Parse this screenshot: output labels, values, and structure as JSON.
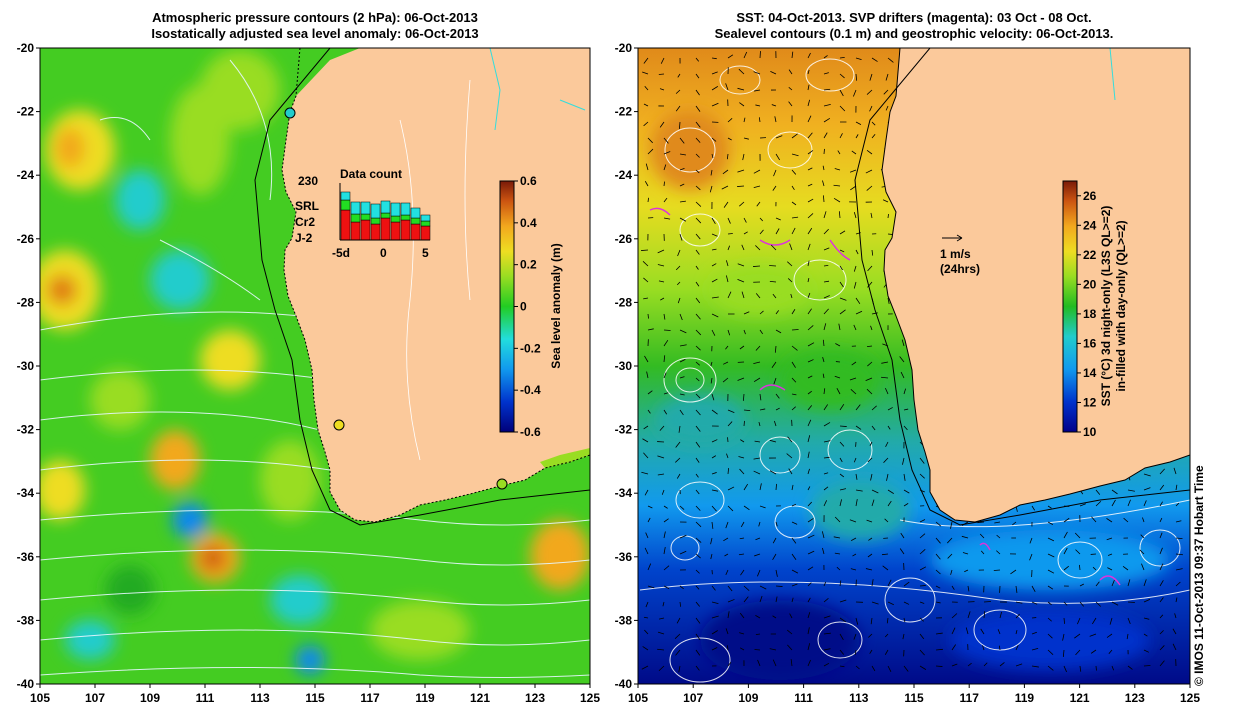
{
  "left_panel": {
    "title_line1": "Atmospheric pressure contours (2 hPa): 06-Oct-2013",
    "title_line2": "Isostatically adjusted sea level anomaly: 06-Oct-2013",
    "x_ticks": [
      "105",
      "107",
      "109",
      "111",
      "113",
      "115",
      "117",
      "119",
      "121",
      "123",
      "125"
    ],
    "y_ticks": [
      "-20",
      "-22",
      "-24",
      "-26",
      "-28",
      "-30",
      "-32",
      "-34",
      "-36",
      "-38",
      "-40"
    ],
    "colorbar": {
      "label": "Sea level anomaly (m)",
      "ticks": [
        "0.6",
        "0.4",
        "0.2",
        "0",
        "-0.2",
        "-0.4",
        "-0.6"
      ],
      "min": -0.6,
      "max": 0.6
    },
    "inset": {
      "title": "Data count",
      "max_label": "230",
      "series": [
        {
          "name": "SRL",
          "color": "#22e0e0"
        },
        {
          "name": "Cr2",
          "color": "#22dd22"
        },
        {
          "name": "J-2",
          "color": "#ee1111"
        }
      ],
      "x_ticks": [
        "-5d",
        "0",
        "5"
      ]
    },
    "colors": {
      "land": "#fbc99b",
      "sea_mid": "#33cc22"
    }
  },
  "right_panel": {
    "title_line1": "SST: 04-Oct-2013. SVP drifters (magenta): 03 Oct - 08 Oct.",
    "title_line2": "Sealevel contours (0.1 m) and geostrophic velocity: 06-Oct-2013.",
    "x_ticks": [
      "105",
      "107",
      "109",
      "111",
      "113",
      "115",
      "117",
      "119",
      "121",
      "123",
      "125"
    ],
    "y_ticks": [
      "-20",
      "-22",
      "-24",
      "-26",
      "-28",
      "-30",
      "-32",
      "-34",
      "-36",
      "-38",
      "-40"
    ],
    "colorbar": {
      "label_line1": "SST (°C) 3d night-only (L3S QL>=2)",
      "label_line2": "in-filled with day-only (QL>=2)",
      "ticks": [
        "26",
        "24",
        "22",
        "20",
        "18",
        "16",
        "14",
        "12",
        "10"
      ],
      "min": 10,
      "max": 27
    },
    "scale_arrow": {
      "label1": "1 m/s",
      "label2": "(24hrs)"
    }
  },
  "credit": "© IMOS 11-Oct-2013 09:37 Hobart Time"
}
